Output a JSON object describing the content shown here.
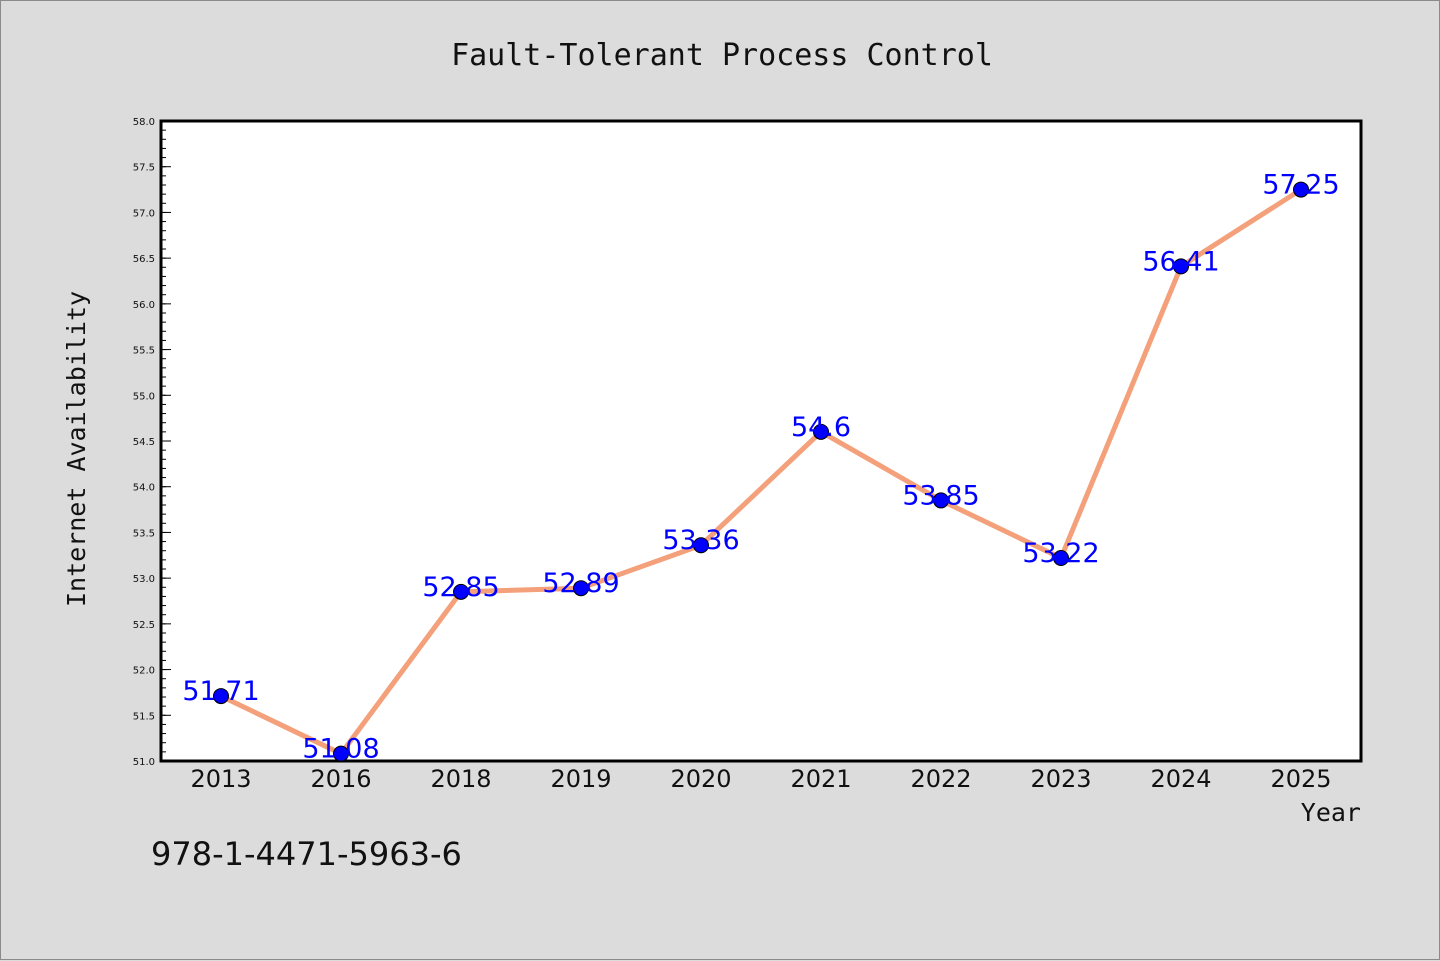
{
  "chart_data": {
    "type": "line",
    "title": "Fault-Tolerant Process Control",
    "xlabel": "Year",
    "ylabel": "Internet Availability",
    "categories": [
      "2013",
      "2016",
      "2018",
      "2019",
      "2020",
      "2021",
      "2022",
      "2023",
      "2024",
      "2025"
    ],
    "series": [
      {
        "values": [
          51.71,
          51.08,
          52.85,
          52.89,
          53.36,
          54.6,
          53.85,
          53.22,
          56.41,
          57.25
        ],
        "data_labels": [
          "51.71",
          "51.08",
          "52.85",
          "52.89",
          "53.36",
          "54.6",
          "53.85",
          "53.22",
          "56.41",
          "57.25"
        ],
        "line_color": "#f4a07a",
        "marker_color": "#0000ff"
      }
    ],
    "ylim": [
      51.0,
      58.0
    ],
    "yticks": [
      "51.0",
      "51.5",
      "52.0",
      "52.5",
      "53.0",
      "53.5",
      "54.0",
      "54.5",
      "55.0",
      "55.5",
      "56.0",
      "56.5",
      "57.0",
      "57.5",
      "58.0"
    ],
    "grid": false,
    "legend": "none",
    "label_color": "#0000ff",
    "plot_background": "#ffffff",
    "figure_background": "#dcdcdc"
  },
  "footer": {
    "text": "978-1-4471-5963-6"
  }
}
